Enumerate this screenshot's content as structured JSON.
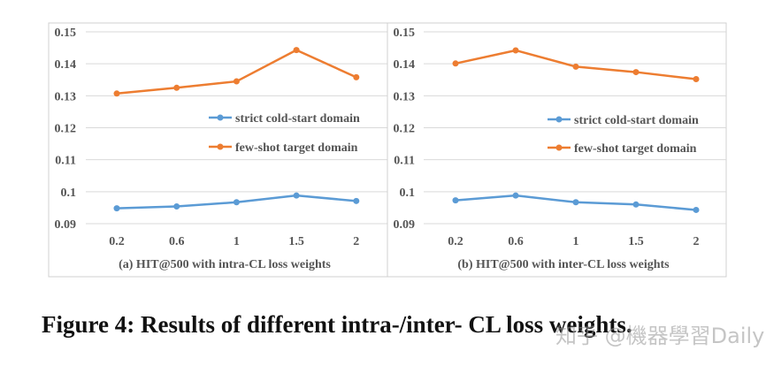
{
  "chart_data": [
    {
      "type": "line",
      "categories": [
        "0.2",
        "0.6",
        "1",
        "1.5",
        "2"
      ],
      "series": [
        {
          "name": "strict cold-start domain",
          "values": [
            0.0948,
            0.0954,
            0.0967,
            0.0988,
            0.0971
          ]
        },
        {
          "name": "few-shot target domain",
          "values": [
            0.1307,
            0.1325,
            0.1345,
            0.1443,
            0.1358
          ]
        }
      ],
      "yticks": [
        "0.09",
        "0.1",
        "0.11",
        "0.12",
        "0.13",
        "0.14",
        "0.15"
      ],
      "ylim": [
        0.09,
        0.15
      ],
      "grid": true,
      "legend": "right",
      "caption": "(a) HIT@500 with intra-CL loss weights"
    },
    {
      "type": "line",
      "categories": [
        "0.2",
        "0.6",
        "1",
        "1.5",
        "2"
      ],
      "series": [
        {
          "name": "strict cold-start domain",
          "values": [
            0.0973,
            0.0988,
            0.0967,
            0.096,
            0.0943
          ]
        },
        {
          "name": "few-shot target domain",
          "values": [
            0.1401,
            0.1442,
            0.1391,
            0.1374,
            0.1352
          ]
        }
      ],
      "yticks": [
        "0.09",
        "0.1",
        "0.11",
        "0.12",
        "0.13",
        "0.14",
        "0.15"
      ],
      "ylim": [
        0.09,
        0.15
      ],
      "grid": true,
      "legend": "right",
      "caption": "(b) HIT@500 with inter-CL loss weights"
    }
  ],
  "colors": {
    "strict": "#5b9bd5",
    "fewshot": "#ed7d31",
    "grid": "#d9d9d9",
    "border": "#d0d0d0"
  },
  "figure_caption": "Figure 4: Results of different intra-/inter- CL loss weights.",
  "watermark": "知乎 @機器學習Daily"
}
